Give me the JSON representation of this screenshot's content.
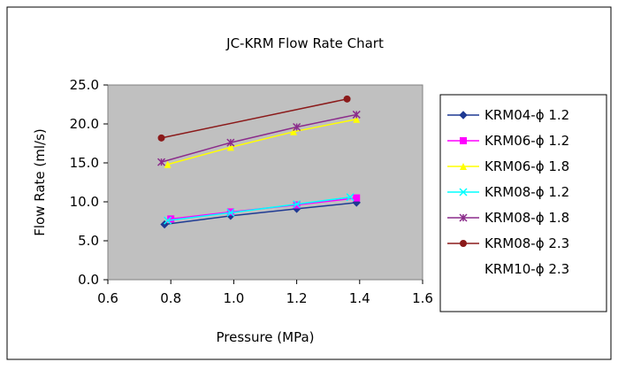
{
  "chart_data": {
    "type": "line",
    "title": "JC-KRM Flow Rate Chart",
    "xlabel": "Pressure (MPa)",
    "ylabel": "Flow Rate (ml/s)",
    "xlim": [
      0.6,
      1.6
    ],
    "ylim": [
      0.0,
      25.0
    ],
    "xticks": [
      0.6,
      0.8,
      1.0,
      1.2,
      1.4,
      1.6
    ],
    "yticks": [
      0.0,
      5.0,
      10.0,
      15.0,
      20.0,
      25.0
    ],
    "xtick_labels": [
      "0.6",
      "0.8",
      "1.0",
      "1.2",
      "1.4",
      "1.6"
    ],
    "ytick_labels": [
      "0.0",
      "5.0",
      "10.0",
      "15.0",
      "20.0",
      "25.0"
    ],
    "grid": false,
    "legend_position": "right",
    "plot_background": "#c0c0c0",
    "series": [
      {
        "name": "KRM04-ϕ 1.2",
        "color": "#1f3a93",
        "marker": "diamond",
        "x": [
          0.78,
          0.99,
          1.2,
          1.39
        ],
        "y": [
          7.1,
          8.2,
          9.1,
          9.9
        ]
      },
      {
        "name": "KRM06-ϕ 1.2",
        "color": "#ff00ff",
        "marker": "square",
        "x": [
          0.8,
          0.99,
          1.2,
          1.39
        ],
        "y": [
          7.8,
          8.7,
          9.6,
          10.5
        ]
      },
      {
        "name": "KRM06-ϕ 1.8",
        "color": "#ffff00",
        "marker": "triangle",
        "x": [
          0.79,
          0.99,
          1.19,
          1.39
        ],
        "y": [
          14.8,
          17.0,
          19.0,
          20.6
        ]
      },
      {
        "name": "KRM08-ϕ 1.2",
        "color": "#00ffff",
        "marker": "x",
        "x": [
          0.79,
          0.99,
          1.2,
          1.37
        ],
        "y": [
          7.6,
          8.6,
          9.7,
          10.6
        ]
      },
      {
        "name": "KRM08-ϕ 1.8",
        "color": "#8b2c8b",
        "marker": "star",
        "x": [
          0.77,
          0.99,
          1.2,
          1.39
        ],
        "y": [
          15.1,
          17.6,
          19.6,
          21.2
        ]
      },
      {
        "name": "KRM08-ϕ 2.3",
        "color": "#8b1a1a",
        "marker": "circle",
        "x": [
          0.77,
          1.36
        ],
        "y": [
          18.2,
          23.2
        ]
      }
    ],
    "legend_extra_entries": [
      "KRM10-ϕ 2.3"
    ]
  }
}
